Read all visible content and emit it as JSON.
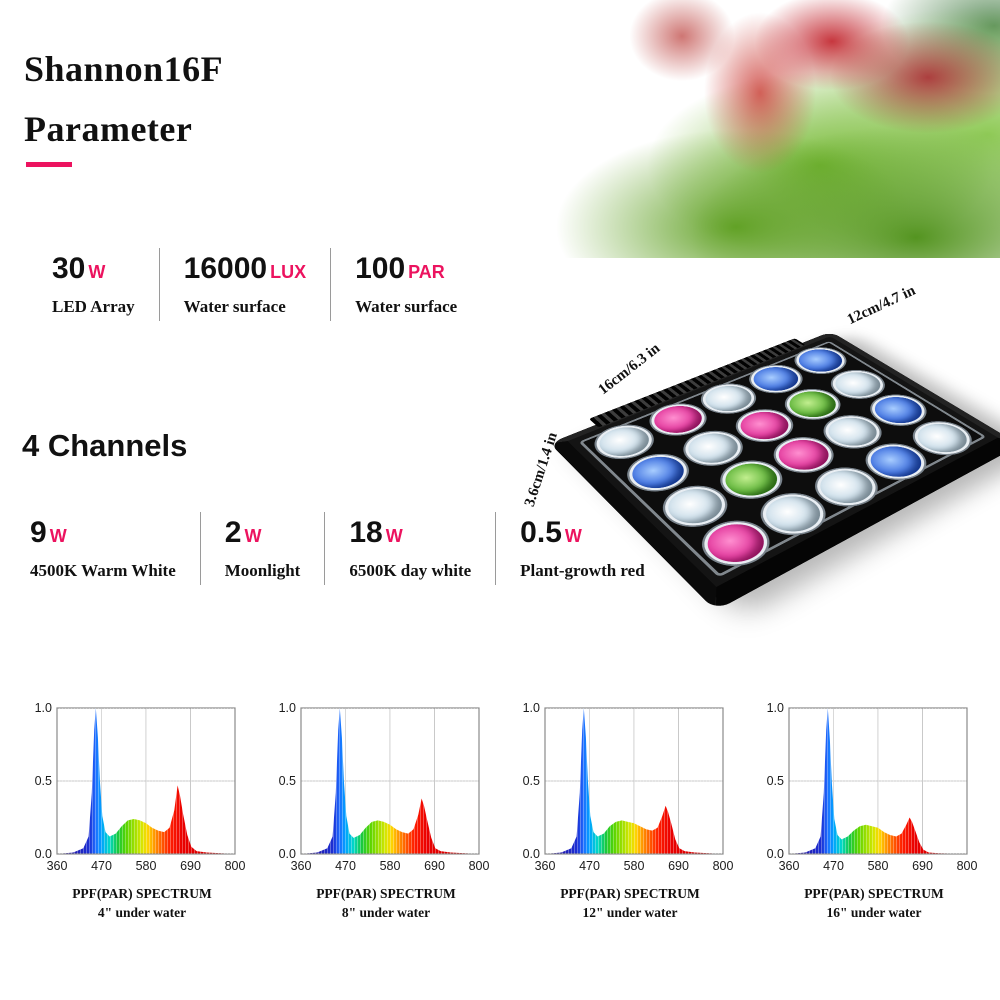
{
  "accent_color": "#ec135f",
  "header": {
    "title_line1": "Shannon16F",
    "title_line2": "Parameter"
  },
  "specs": [
    {
      "value": "30",
      "unit": "W",
      "label": "LED Array"
    },
    {
      "value": "16000",
      "unit": "LUX",
      "label": "Water surface"
    },
    {
      "value": "100",
      "unit": "PAR",
      "label": "Water surface"
    }
  ],
  "channels_heading": "4 Channels",
  "channels": [
    {
      "value": "9",
      "unit": "W",
      "label": "4500K Warm White"
    },
    {
      "value": "2",
      "unit": "W",
      "label": "Moonlight"
    },
    {
      "value": "18",
      "unit": "W",
      "label": "6500K day white"
    },
    {
      "value": "0.5",
      "unit": "W",
      "label": "Plant-growth red"
    }
  ],
  "product": {
    "dim_width": "12cm/4.7 in",
    "dim_length": "16cm/6.3 in",
    "dim_height": "3.6cm/1.4 in",
    "lens_colors": [
      "white",
      "magenta",
      "white",
      "blue",
      "blue",
      "blue",
      "white",
      "magenta",
      "green",
      "white",
      "white",
      "green",
      "magenta",
      "white",
      "blue",
      "magenta",
      "white",
      "white",
      "blue",
      "white"
    ],
    "lens_palette": {
      "white": [
        "#ffffff",
        "#b9d2e2"
      ],
      "magenta": [
        "#ff8fd0",
        "#d91f8d"
      ],
      "green": [
        "#c2ef8f",
        "#43a321"
      ],
      "blue": [
        "#a8cdff",
        "#2156d6"
      ]
    }
  },
  "chart_data": [
    {
      "type": "area",
      "title": "PPF(PAR) SPECTRUM",
      "subtitle": "4\" under water",
      "xlim": [
        360,
        800
      ],
      "ylim": [
        0,
        1
      ],
      "x_ticks": [
        "360",
        "470",
        "580",
        "690",
        "800"
      ],
      "y_ticks": [
        "0.0",
        "0.5",
        "1.0"
      ],
      "grid": true,
      "series": [
        {
          "name": "relative intensity",
          "points": [
            [
              360,
              0
            ],
            [
              400,
              0.01
            ],
            [
              425,
              0.04
            ],
            [
              438,
              0.12
            ],
            [
              446,
              0.42
            ],
            [
              452,
              0.85
            ],
            [
              456,
              1.0
            ],
            [
              461,
              0.8
            ],
            [
              466,
              0.5
            ],
            [
              472,
              0.26
            ],
            [
              480,
              0.15
            ],
            [
              490,
              0.12
            ],
            [
              505,
              0.14
            ],
            [
              520,
              0.19
            ],
            [
              535,
              0.23
            ],
            [
              550,
              0.24
            ],
            [
              565,
              0.23
            ],
            [
              580,
              0.21
            ],
            [
              595,
              0.18
            ],
            [
              610,
              0.16
            ],
            [
              625,
              0.15
            ],
            [
              638,
              0.18
            ],
            [
              650,
              0.3
            ],
            [
              658,
              0.47
            ],
            [
              664,
              0.4
            ],
            [
              672,
              0.27
            ],
            [
              682,
              0.13
            ],
            [
              692,
              0.05
            ],
            [
              705,
              0.02
            ],
            [
              730,
              0.01
            ],
            [
              800,
              0
            ]
          ]
        }
      ]
    },
    {
      "type": "area",
      "title": "PPF(PAR) SPECTRUM",
      "subtitle": "8\" under water",
      "xlim": [
        360,
        800
      ],
      "ylim": [
        0,
        1
      ],
      "x_ticks": [
        "360",
        "470",
        "580",
        "690",
        "800"
      ],
      "y_ticks": [
        "0.0",
        "0.5",
        "1.0"
      ],
      "grid": true,
      "series": [
        {
          "name": "relative intensity",
          "points": [
            [
              360,
              0
            ],
            [
              400,
              0.01
            ],
            [
              425,
              0.04
            ],
            [
              438,
              0.12
            ],
            [
              446,
              0.42
            ],
            [
              452,
              0.85
            ],
            [
              456,
              1.0
            ],
            [
              461,
              0.8
            ],
            [
              466,
              0.5
            ],
            [
              472,
              0.26
            ],
            [
              480,
              0.14
            ],
            [
              490,
              0.11
            ],
            [
              505,
              0.13
            ],
            [
              520,
              0.18
            ],
            [
              535,
              0.22
            ],
            [
              550,
              0.23
            ],
            [
              565,
              0.22
            ],
            [
              580,
              0.2
            ],
            [
              595,
              0.17
            ],
            [
              610,
              0.15
            ],
            [
              625,
              0.14
            ],
            [
              638,
              0.17
            ],
            [
              650,
              0.27
            ],
            [
              658,
              0.38
            ],
            [
              664,
              0.33
            ],
            [
              672,
              0.23
            ],
            [
              682,
              0.11
            ],
            [
              692,
              0.04
            ],
            [
              705,
              0.02
            ],
            [
              730,
              0.01
            ],
            [
              800,
              0
            ]
          ]
        }
      ]
    },
    {
      "type": "area",
      "title": "PPF(PAR) SPECTRUM",
      "subtitle": "12\" under water",
      "xlim": [
        360,
        800
      ],
      "ylim": [
        0,
        1
      ],
      "x_ticks": [
        "360",
        "470",
        "580",
        "690",
        "800"
      ],
      "y_ticks": [
        "0.0",
        "0.5",
        "1.0"
      ],
      "grid": true,
      "series": [
        {
          "name": "relative intensity",
          "points": [
            [
              360,
              0
            ],
            [
              400,
              0.01
            ],
            [
              425,
              0.04
            ],
            [
              438,
              0.12
            ],
            [
              446,
              0.42
            ],
            [
              452,
              0.85
            ],
            [
              456,
              1.0
            ],
            [
              461,
              0.8
            ],
            [
              466,
              0.5
            ],
            [
              472,
              0.26
            ],
            [
              480,
              0.15
            ],
            [
              490,
              0.12
            ],
            [
              505,
              0.14
            ],
            [
              520,
              0.19
            ],
            [
              535,
              0.22
            ],
            [
              550,
              0.23
            ],
            [
              565,
              0.22
            ],
            [
              580,
              0.21
            ],
            [
              595,
              0.19
            ],
            [
              610,
              0.17
            ],
            [
              625,
              0.16
            ],
            [
              638,
              0.18
            ],
            [
              650,
              0.26
            ],
            [
              658,
              0.33
            ],
            [
              664,
              0.29
            ],
            [
              672,
              0.21
            ],
            [
              682,
              0.1
            ],
            [
              692,
              0.04
            ],
            [
              705,
              0.02
            ],
            [
              730,
              0.01
            ],
            [
              800,
              0
            ]
          ]
        }
      ]
    },
    {
      "type": "area",
      "title": "PPF(PAR) SPECTRUM",
      "subtitle": "16\" under water",
      "xlim": [
        360,
        800
      ],
      "ylim": [
        0,
        1
      ],
      "x_ticks": [
        "360",
        "470",
        "580",
        "690",
        "800"
      ],
      "y_ticks": [
        "0.0",
        "0.5",
        "1.0"
      ],
      "grid": true,
      "series": [
        {
          "name": "relative intensity",
          "points": [
            [
              360,
              0
            ],
            [
              400,
              0.01
            ],
            [
              425,
              0.04
            ],
            [
              438,
              0.12
            ],
            [
              446,
              0.42
            ],
            [
              452,
              0.85
            ],
            [
              456,
              1.0
            ],
            [
              461,
              0.78
            ],
            [
              466,
              0.48
            ],
            [
              472,
              0.24
            ],
            [
              480,
              0.13
            ],
            [
              490,
              0.1
            ],
            [
              505,
              0.12
            ],
            [
              520,
              0.16
            ],
            [
              535,
              0.19
            ],
            [
              550,
              0.2
            ],
            [
              565,
              0.19
            ],
            [
              580,
              0.18
            ],
            [
              595,
              0.15
            ],
            [
              610,
              0.13
            ],
            [
              625,
              0.12
            ],
            [
              638,
              0.14
            ],
            [
              650,
              0.2
            ],
            [
              658,
              0.25
            ],
            [
              664,
              0.22
            ],
            [
              672,
              0.16
            ],
            [
              682,
              0.08
            ],
            [
              692,
              0.03
            ],
            [
              705,
              0.01
            ],
            [
              730,
              0.005
            ],
            [
              800,
              0
            ]
          ]
        }
      ]
    }
  ]
}
